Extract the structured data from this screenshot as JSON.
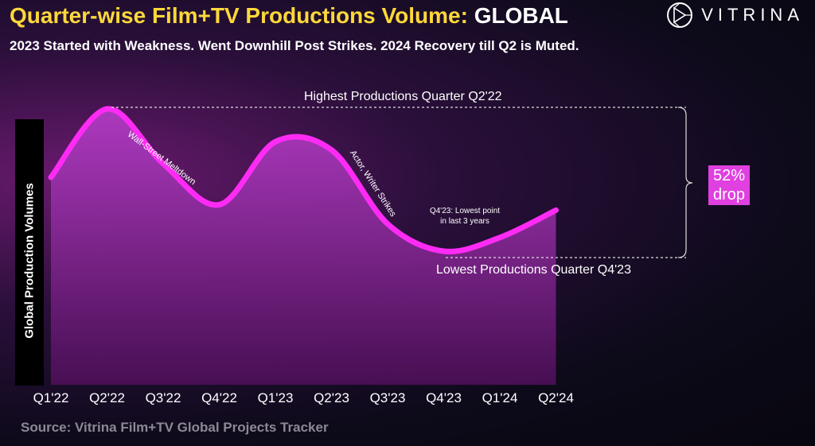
{
  "header": {
    "title_main": "Quarter-wise Film+TV Productions Volume:",
    "title_region": "GLOBAL",
    "subtitle": "2023 Started with Weakness. Went Downhill Post Strikes. 2024 Recovery till Q2 is Muted.",
    "logo_text": "VITRINA",
    "logo_icon": "vitrina-logo-icon"
  },
  "chart_data": {
    "type": "area",
    "title": "",
    "ylabel": "Global Production Volumes",
    "xlabel": "",
    "categories": [
      "Q1'22",
      "Q2'22",
      "Q3'22",
      "Q4'22",
      "Q1'23",
      "Q2'23",
      "Q3'23",
      "Q4'23",
      "Q1'24",
      "Q2'24"
    ],
    "values": [
      75,
      100,
      80,
      65,
      88,
      85,
      58,
      48,
      53,
      63
    ],
    "y_axis_ticks_shown": false,
    "grid": false,
    "colors": {
      "line": "#ff2bf5",
      "fill_top": "#b23bc4",
      "fill_bottom": "#4a0f55"
    },
    "annotations": {
      "highest": "Highest Productions Quarter Q2'22",
      "lowest": "Lowest  Productions Quarter Q4'23",
      "drop": "52% drop",
      "wall_street": "Wall-Street Meltdown",
      "strikes": "Actor, Writer Strikes",
      "q4_note": "Q4'23: Lowest point in last 3 years"
    }
  },
  "footer": {
    "source": "Source: Vitrina Film+TV Global Projects Tracker"
  }
}
